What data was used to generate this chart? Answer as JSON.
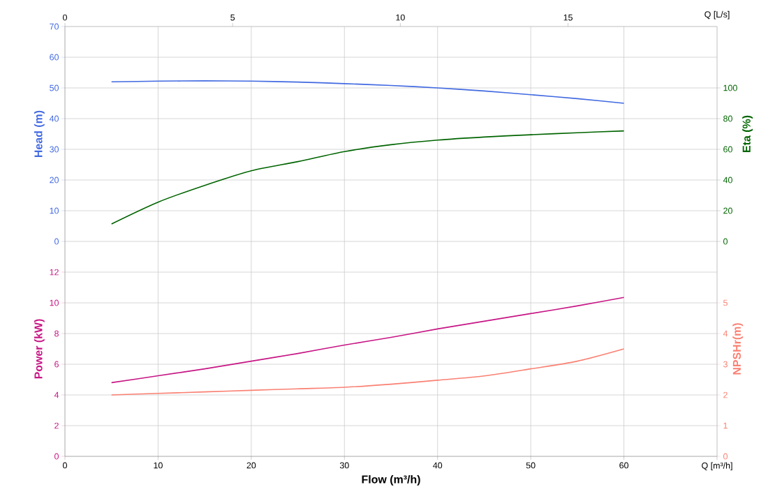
{
  "chart_data": [
    {
      "type": "line",
      "ylabel": "Head (m)",
      "y2label": "Eta (%)",
      "x2label": "Q [L/s]",
      "x": [
        5,
        10,
        15,
        20,
        25,
        30,
        35,
        40,
        45,
        50,
        55,
        60
      ],
      "xlim": [
        0,
        70
      ],
      "xticks": [
        0,
        10,
        20,
        30,
        40,
        50,
        60,
        70
      ],
      "tick_labels": "y",
      "x2lim": [
        0,
        19.444
      ],
      "x2ticks": [
        0,
        5,
        10,
        15
      ],
      "ylim": [
        0,
        70
      ],
      "yticks": [
        0,
        10,
        20,
        30,
        40,
        50,
        60,
        70
      ],
      "y2lim": [
        0,
        140
      ],
      "y2ticks": [
        0,
        20,
        40,
        60,
        80,
        100
      ],
      "grid": true,
      "series": [
        {
          "color": "#4169e1",
          "values": [
            52.0,
            52.2,
            52.3,
            52.2,
            51.9,
            51.4,
            50.8,
            50.0,
            49.0,
            47.8,
            46.5,
            45.0
          ]
        },
        {
          "color": "#006400",
          "axis": "y2",
          "values": [
            11.4,
            25.6,
            36.5,
            46,
            52,
            58.5,
            63,
            66,
            68,
            69.5,
            70.8,
            72
          ]
        }
      ]
    },
    {
      "type": "line",
      "ylabel": "Power (kW)",
      "y2label": "NPSHr(m)",
      "xlabel": "Flow (m³/h)",
      "x": [
        5,
        10,
        15,
        20,
        25,
        30,
        35,
        40,
        45,
        50,
        55,
        60
      ],
      "xlim": [
        0,
        70
      ],
      "xticks": [
        0,
        10,
        20,
        30,
        40,
        50,
        60,
        {
          "value": 70,
          "label": "Q [m³/h]"
        }
      ],
      "ylim": [
        0,
        14
      ],
      "yticks": [
        0,
        2,
        4,
        6,
        8,
        10,
        12
      ],
      "y2lim": [
        0,
        7
      ],
      "y2ticks": [
        0,
        1,
        2,
        3,
        4,
        5
      ],
      "grid": true,
      "series": [
        {
          "color": "#c71585",
          "values": [
            4.8,
            5.25,
            5.7,
            6.2,
            6.7,
            7.25,
            7.75,
            8.3,
            8.8,
            9.3,
            9.8,
            10.35
          ]
        },
        {
          "color": "#fa8072",
          "axis": "y2",
          "values": [
            2.0,
            2.05,
            2.1,
            2.15,
            2.2,
            2.25,
            2.35,
            2.48,
            2.62,
            2.85,
            3.1,
            3.5
          ]
        }
      ]
    }
  ]
}
